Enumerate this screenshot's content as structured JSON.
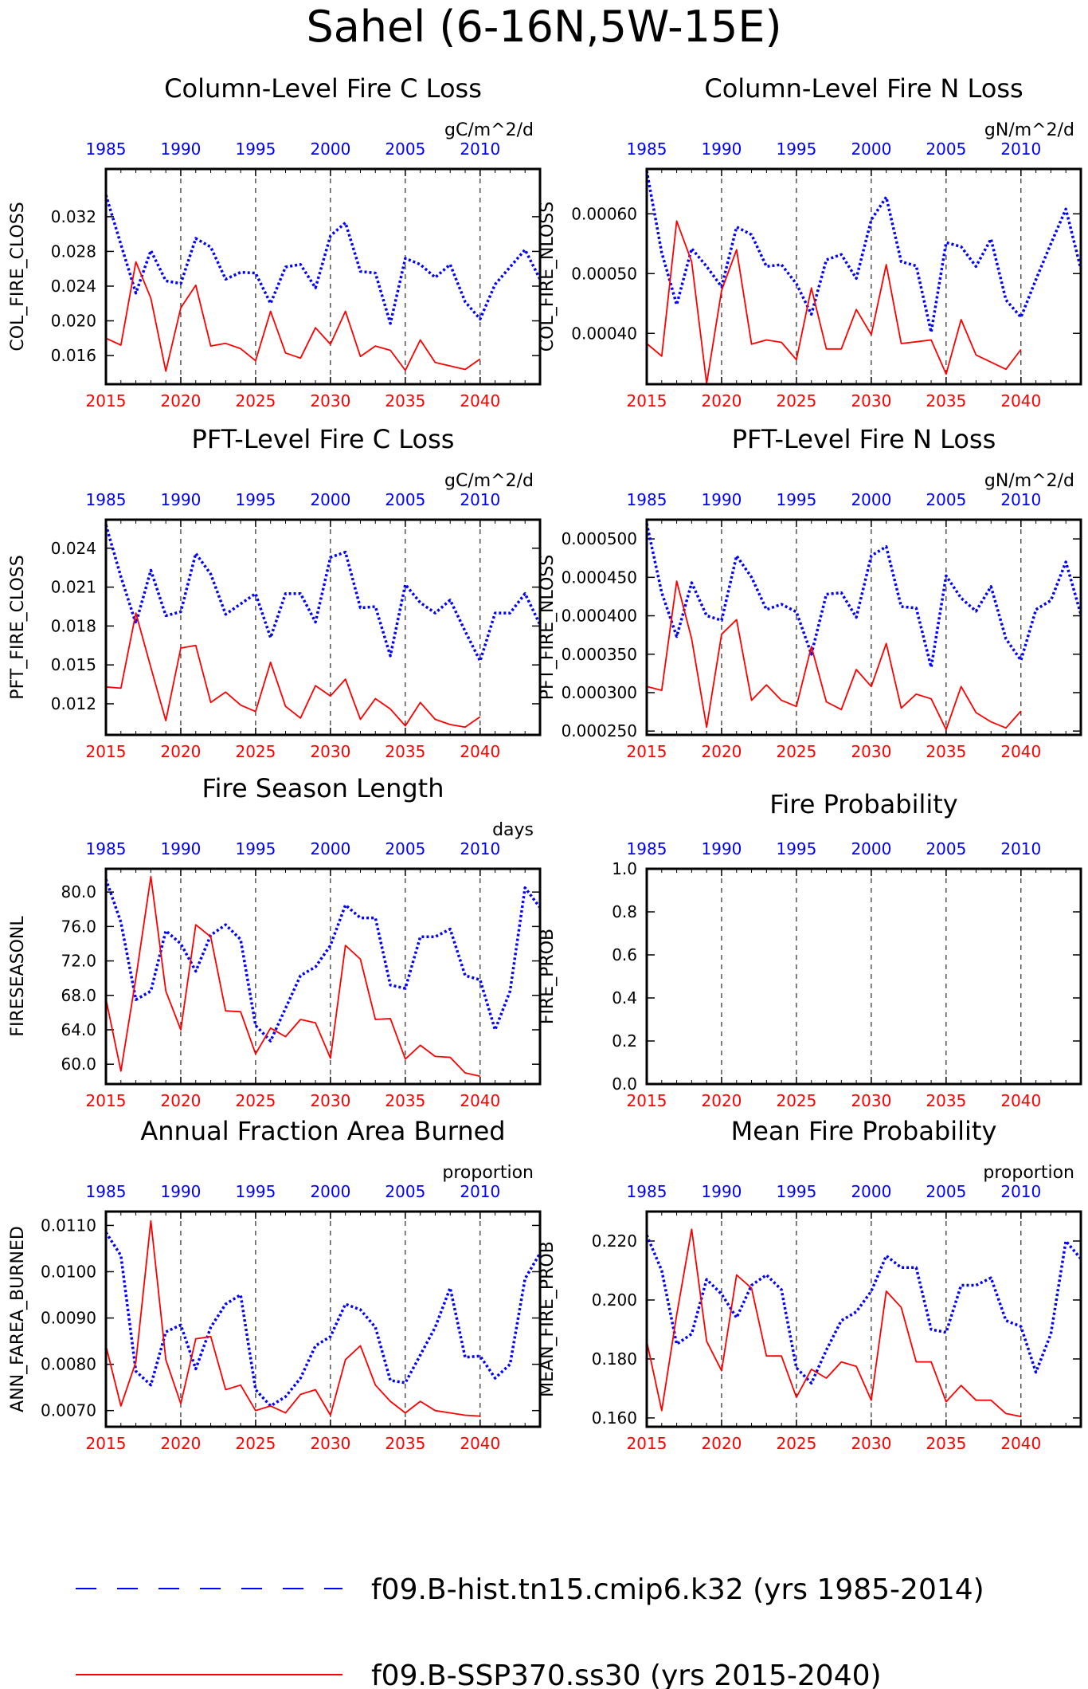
{
  "figure": {
    "title": "Sahel (6-16N,5W-15E)",
    "colors": {
      "hist": "#0000ff",
      "ssp": "#ff0000",
      "axis": "#000000",
      "grid": "#000000"
    },
    "bottom_ticks": [
      "2015",
      "2020",
      "2025",
      "2030",
      "2035",
      "2040"
    ],
    "top_ticks": [
      "1985",
      "1990",
      "1995",
      "2000",
      "2005",
      "2010"
    ]
  },
  "legend": {
    "items": [
      {
        "name": "f09.B-hist.tn15.cmip6.k32 (yrs 1985-2014)",
        "color": "#0000ff",
        "style": "dashed"
      },
      {
        "name": "f09.B-SSP370.ss30 (yrs 2015-2040)",
        "color": "#ff0000",
        "style": "solid"
      }
    ]
  },
  "chart_data": [
    {
      "type": "line",
      "title": "Column-Level Fire C Loss",
      "ylabel": "COL_FIRE_CLOSS",
      "units": "gC/m^2/d",
      "xlim": [
        2015,
        2044
      ],
      "ylim": [
        0.0127,
        0.0375
      ],
      "yticks": [
        0.016,
        0.02,
        0.024,
        0.028,
        0.032
      ],
      "ytick_labels": [
        "0.016",
        "0.020",
        "0.024",
        "0.028",
        "0.032"
      ],
      "series": [
        {
          "x_start": 2015,
          "values": [
            0.0345,
            0.0288,
            0.0232,
            0.0281,
            0.0246,
            0.0243,
            0.0295,
            0.0285,
            0.0248,
            0.0256,
            0.0255,
            0.022,
            0.0262,
            0.0265,
            0.0238,
            0.0298,
            0.0313,
            0.0257,
            0.0255,
            0.0197,
            0.0272,
            0.0265,
            0.025,
            0.0265,
            0.0222,
            0.0202,
            0.0242,
            0.0262,
            0.0282,
            0.0248
          ]
        },
        {
          "x_start": 2015,
          "values": [
            0.018,
            0.0172,
            0.0268,
            0.0226,
            0.0142,
            0.0215,
            0.0241,
            0.0171,
            0.0174,
            0.0168,
            0.0154,
            0.0211,
            0.0163,
            0.0157,
            0.0192,
            0.0173,
            0.0211,
            0.0159,
            0.0171,
            0.0166,
            0.0143,
            0.0178,
            0.0152,
            0.0148,
            0.0144,
            0.0156
          ]
        }
      ]
    },
    {
      "type": "line",
      "title": "Column-Level Fire N Loss",
      "ylabel": "COL_FIRE_NLOSS",
      "units": "gN/m^2/d",
      "xlim": [
        2015,
        2044
      ],
      "ylim": [
        0.000315,
        0.000675
      ],
      "yticks": [
        0.0004,
        0.0005,
        0.0006
      ],
      "ytick_labels": [
        "0.00040",
        "0.00050",
        "0.00060"
      ],
      "series": [
        {
          "x_start": 2015,
          "values": [
            0.000672,
            0.000535,
            0.000448,
            0.000542,
            0.000512,
            0.000478,
            0.000578,
            0.000565,
            0.000512,
            0.000515,
            0.000483,
            0.000432,
            0.000523,
            0.000532,
            0.000492,
            0.00059,
            0.000628,
            0.00052,
            0.000513,
            0.000402,
            0.000552,
            0.000545,
            0.000512,
            0.000558,
            0.000456,
            0.000427,
            0.00049,
            0.00055,
            0.000608,
            0.000508
          ]
        },
        {
          "x_start": 2015,
          "values": [
            0.000383,
            0.000362,
            0.000588,
            0.00052,
            0.000316,
            0.000472,
            0.00054,
            0.000382,
            0.000389,
            0.000385,
            0.000356,
            0.000476,
            0.000374,
            0.000374,
            0.00044,
            0.000398,
            0.000515,
            0.000383,
            0.000386,
            0.000389,
            0.000332,
            0.000423,
            0.000364,
            0.000352,
            0.00034,
            0.000373
          ]
        }
      ]
    },
    {
      "type": "line",
      "title": "PFT-Level Fire C Loss",
      "ylabel": "PFT_FIRE_CLOSS",
      "units": "gC/m^2/d",
      "xlim": [
        2015,
        2044
      ],
      "ylim": [
        0.0096,
        0.0262
      ],
      "yticks": [
        0.012,
        0.015,
        0.018,
        0.021,
        0.024
      ],
      "ytick_labels": [
        "0.012",
        "0.015",
        "0.018",
        "0.021",
        "0.024"
      ],
      "series": [
        {
          "x_start": 2015,
          "values": [
            0.0258,
            0.0218,
            0.0182,
            0.0223,
            0.0188,
            0.0191,
            0.0236,
            0.022,
            0.0189,
            0.0197,
            0.0205,
            0.0171,
            0.0205,
            0.0205,
            0.0183,
            0.0233,
            0.0237,
            0.0194,
            0.0195,
            0.0157,
            0.0212,
            0.0198,
            0.019,
            0.02,
            0.0176,
            0.0153,
            0.019,
            0.019,
            0.0205,
            0.0181
          ]
        },
        {
          "x_start": 2015,
          "values": [
            0.0133,
            0.0132,
            0.019,
            0.0148,
            0.0107,
            0.0163,
            0.0165,
            0.0121,
            0.0129,
            0.0119,
            0.0114,
            0.0152,
            0.0118,
            0.0109,
            0.0134,
            0.0126,
            0.0139,
            0.0108,
            0.0124,
            0.0116,
            0.0103,
            0.0121,
            0.0108,
            0.0104,
            0.0102,
            0.011
          ]
        }
      ]
    },
    {
      "type": "line",
      "title": "PFT-Level Fire N Loss",
      "ylabel": "PFT_FIRE_NLOSS",
      "units": "gN/m^2/d",
      "xlim": [
        2015,
        2044
      ],
      "ylim": [
        0.000245,
        0.000525
      ],
      "yticks": [
        0.00025,
        0.0003,
        0.00035,
        0.0004,
        0.00045,
        0.0005
      ],
      "ytick_labels": [
        "0.000250",
        "0.000300",
        "0.000350",
        "0.000400",
        "0.000450",
        "0.000500"
      ],
      "series": [
        {
          "x_start": 2015,
          "values": [
            0.00052,
            0.00043,
            0.000373,
            0.000443,
            0.0004,
            0.000394,
            0.000478,
            0.00045,
            0.000408,
            0.000415,
            0.000405,
            0.00035,
            0.000428,
            0.00043,
            0.000398,
            0.000478,
            0.00049,
            0.000412,
            0.00041,
            0.000333,
            0.000452,
            0.000423,
            0.000406,
            0.000438,
            0.00037,
            0.000342,
            0.000408,
            0.00042,
            0.00047,
            0.000402
          ]
        },
        {
          "x_start": 2015,
          "values": [
            0.000308,
            0.000303,
            0.000445,
            0.00037,
            0.000255,
            0.000376,
            0.000395,
            0.00029,
            0.00031,
            0.00029,
            0.000282,
            0.00036,
            0.000288,
            0.000278,
            0.00033,
            0.000308,
            0.000364,
            0.00028,
            0.000298,
            0.000292,
            0.000252,
            0.000308,
            0.000274,
            0.000262,
            0.000254,
            0.000276
          ]
        }
      ]
    },
    {
      "type": "line",
      "title": "Fire Season Length",
      "ylabel": "FIRESEASONL",
      "units": "days",
      "xlim": [
        2015,
        2044
      ],
      "ylim": [
        57.7,
        82.7
      ],
      "yticks": [
        60,
        64,
        68,
        72,
        76,
        80
      ],
      "ytick_labels": [
        "60.0",
        "64.0",
        "68.0",
        "72.0",
        "76.0",
        "80.0"
      ],
      "series": [
        {
          "x_start": 2015,
          "values": [
            81.5,
            76.5,
            67.5,
            68.5,
            75.5,
            74.0,
            70.8,
            75.0,
            76.2,
            74.5,
            64.5,
            62.7,
            66.5,
            70.3,
            71.3,
            73.8,
            78.5,
            77.0,
            77.0,
            69.2,
            68.8,
            74.8,
            74.8,
            75.7,
            70.3,
            69.8,
            64.0,
            68.5,
            80.5,
            78.2
          ]
        },
        {
          "x_start": 2015,
          "values": [
            67.6,
            59.2,
            70.0,
            81.8,
            68.5,
            64.0,
            76.2,
            74.8,
            66.2,
            66.1,
            61.2,
            64.2,
            63.2,
            65.2,
            64.8,
            60.7,
            73.8,
            72.2,
            65.2,
            65.3,
            60.6,
            62.2,
            60.9,
            60.8,
            59.0,
            58.6
          ]
        }
      ]
    },
    {
      "type": "line",
      "title": "Fire Probability",
      "ylabel": "FIRE_PROB",
      "units": "",
      "xlim": [
        2015,
        2044
      ],
      "ylim": [
        0,
        1
      ],
      "yticks": [
        0,
        0.2,
        0.4,
        0.6,
        0.8,
        1.0
      ],
      "ytick_labels": [
        "0.0",
        "0.2",
        "0.4",
        "0.6",
        "0.8",
        "1.0"
      ],
      "series": []
    },
    {
      "type": "line",
      "title": "Annual Fraction Area Burned",
      "ylabel": "ANN_FAREA_BURNED",
      "units": "proportion",
      "xlim": [
        2015,
        2044
      ],
      "ylim": [
        0.00665,
        0.0113
      ],
      "yticks": [
        0.007,
        0.008,
        0.009,
        0.01,
        0.011
      ],
      "ytick_labels": [
        "0.0070",
        "0.0080",
        "0.0090",
        "0.0100",
        "0.0110"
      ],
      "series": [
        {
          "x_start": 2015,
          "values": [
            0.01085,
            0.01035,
            0.00785,
            0.00755,
            0.0087,
            0.00885,
            0.0079,
            0.0088,
            0.0093,
            0.0095,
            0.00745,
            0.0071,
            0.0073,
            0.0077,
            0.0084,
            0.0086,
            0.0093,
            0.00918,
            0.0088,
            0.00765,
            0.0076,
            0.0082,
            0.0088,
            0.00965,
            0.00815,
            0.00818,
            0.0077,
            0.008,
            0.00985,
            0.0104
          ]
        },
        {
          "x_start": 2015,
          "values": [
            0.0084,
            0.0071,
            0.00805,
            0.0111,
            0.0081,
            0.00715,
            0.00855,
            0.0086,
            0.00745,
            0.00755,
            0.007,
            0.0071,
            0.00695,
            0.00735,
            0.00745,
            0.0069,
            0.0081,
            0.0084,
            0.00755,
            0.0072,
            0.00695,
            0.0072,
            0.007,
            0.00695,
            0.0069,
            0.00688
          ]
        }
      ]
    },
    {
      "type": "line",
      "title": "Mean Fire Probability",
      "ylabel": "MEAN_FIRE_PROB",
      "units": "proportion",
      "xlim": [
        2015,
        2044
      ],
      "ylim": [
        0.157,
        0.23
      ],
      "yticks": [
        0.16,
        0.18,
        0.2,
        0.22
      ],
      "ytick_labels": [
        "0.160",
        "0.180",
        "0.200",
        "0.220"
      ],
      "series": [
        {
          "x_start": 2015,
          "values": [
            0.222,
            0.21,
            0.185,
            0.1885,
            0.207,
            0.202,
            0.194,
            0.205,
            0.2085,
            0.2035,
            0.177,
            0.1718,
            0.183,
            0.193,
            0.196,
            0.203,
            0.215,
            0.211,
            0.211,
            0.19,
            0.189,
            0.205,
            0.205,
            0.2075,
            0.193,
            0.191,
            0.1755,
            0.1885,
            0.22,
            0.214
          ]
        },
        {
          "x_start": 2015,
          "values": [
            0.186,
            0.1625,
            0.195,
            0.224,
            0.186,
            0.176,
            0.2085,
            0.204,
            0.181,
            0.181,
            0.167,
            0.1765,
            0.1735,
            0.179,
            0.1775,
            0.166,
            0.203,
            0.1975,
            0.179,
            0.179,
            0.1655,
            0.171,
            0.166,
            0.166,
            0.1615,
            0.1605
          ]
        }
      ]
    }
  ]
}
